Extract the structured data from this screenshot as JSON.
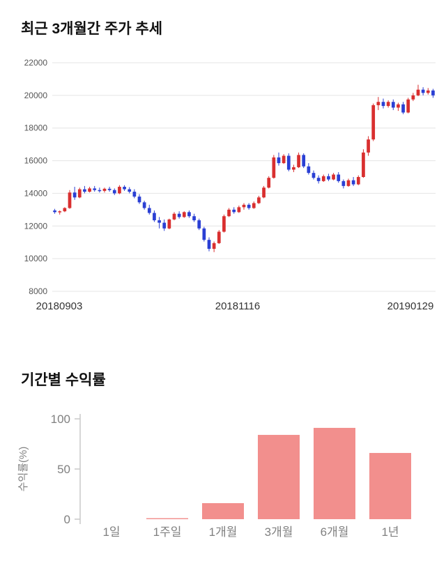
{
  "price_section": {
    "title": "최근 3개월간 주가 추세"
  },
  "returns_section": {
    "title": "기간별 수익률"
  },
  "chart_data": [
    {
      "type": "candlestick",
      "title": "최근 3개월간 주가 추세",
      "ylim": [
        8000,
        22000
      ],
      "yticks": [
        8000,
        10000,
        12000,
        14000,
        16000,
        18000,
        20000,
        22000
      ],
      "x_axis_labels": [
        "20180903",
        "20181116",
        "20190129"
      ],
      "up_color": "#d92f2f",
      "down_color": "#2a3fd4",
      "grid_color": "#e4e4e4",
      "ytick_label_color": "#555555",
      "xlabel_color": "#333333",
      "candles_ohlc": [
        [
          12950,
          13050,
          12750,
          12850
        ],
        [
          12850,
          12950,
          12700,
          12900
        ],
        [
          12900,
          13150,
          12850,
          13100
        ],
        [
          13100,
          14200,
          13050,
          14050
        ],
        [
          14050,
          14400,
          13600,
          13750
        ],
        [
          13750,
          14350,
          13700,
          14250
        ],
        [
          14250,
          14450,
          14000,
          14100
        ],
        [
          14100,
          14400,
          14050,
          14300
        ],
        [
          14300,
          14450,
          14100,
          14200
        ],
        [
          14200,
          14350,
          14050,
          14150
        ],
        [
          14150,
          14350,
          14050,
          14280
        ],
        [
          14280,
          14400,
          14100,
          14200
        ],
        [
          14200,
          14300,
          13900,
          14000
        ],
        [
          14000,
          14500,
          13950,
          14400
        ],
        [
          14400,
          14500,
          14150,
          14250
        ],
        [
          14250,
          14380,
          14000,
          14100
        ],
        [
          14100,
          14250,
          13700,
          13800
        ],
        [
          13800,
          13950,
          13350,
          13450
        ],
        [
          13450,
          13550,
          13000,
          13100
        ],
        [
          13100,
          13300,
          12700,
          12800
        ],
        [
          12800,
          12950,
          12250,
          12350
        ],
        [
          12350,
          12550,
          11850,
          12200
        ],
        [
          12200,
          12400,
          11700,
          11850
        ],
        [
          11850,
          12450,
          11800,
          12400
        ],
        [
          12400,
          12850,
          12350,
          12750
        ],
        [
          12750,
          12900,
          12450,
          12550
        ],
        [
          12550,
          12900,
          12500,
          12850
        ],
        [
          12850,
          12950,
          12500,
          12600
        ],
        [
          12600,
          12750,
          12250,
          12350
        ],
        [
          12350,
          12450,
          11750,
          11850
        ],
        [
          11850,
          11950,
          11050,
          11150
        ],
        [
          11150,
          11300,
          10450,
          10600
        ],
        [
          10600,
          11050,
          10400,
          10950
        ],
        [
          10950,
          11750,
          10900,
          11650
        ],
        [
          11650,
          12700,
          11600,
          12600
        ],
        [
          12600,
          13100,
          12550,
          13000
        ],
        [
          13000,
          13150,
          12750,
          12850
        ],
        [
          12850,
          13250,
          12800,
          13150
        ],
        [
          13150,
          13400,
          13000,
          13300
        ],
        [
          13300,
          13400,
          13000,
          13100
        ],
        [
          13100,
          13500,
          13050,
          13400
        ],
        [
          13400,
          13850,
          13350,
          13750
        ],
        [
          13750,
          14450,
          13700,
          14350
        ],
        [
          14350,
          15050,
          14300,
          14950
        ],
        [
          14950,
          16350,
          14900,
          16200
        ],
        [
          16200,
          16500,
          15700,
          15850
        ],
        [
          15850,
          16400,
          15800,
          16300
        ],
        [
          16300,
          16450,
          15350,
          15450
        ],
        [
          15450,
          15750,
          15300,
          15600
        ],
        [
          15600,
          16500,
          15550,
          16350
        ],
        [
          16350,
          16450,
          15550,
          15650
        ],
        [
          15650,
          15850,
          15150,
          15250
        ],
        [
          15250,
          15400,
          14850,
          14950
        ],
        [
          14950,
          15100,
          14600,
          14750
        ],
        [
          14750,
          15150,
          14700,
          15050
        ],
        [
          15050,
          15200,
          14750,
          14850
        ],
        [
          14850,
          15250,
          14800,
          15150
        ],
        [
          15150,
          15300,
          14650,
          14750
        ],
        [
          14750,
          14850,
          14300,
          14450
        ],
        [
          14450,
          14900,
          14400,
          14800
        ],
        [
          14800,
          15000,
          14450,
          14550
        ],
        [
          14550,
          15100,
          14500,
          15000
        ],
        [
          15000,
          16700,
          14950,
          16500
        ],
        [
          16500,
          17500,
          16300,
          17300
        ],
        [
          17300,
          19500,
          17200,
          19400
        ],
        [
          19400,
          19900,
          19100,
          19600
        ],
        [
          19600,
          19800,
          19200,
          19350
        ],
        [
          19350,
          19700,
          19250,
          19600
        ],
        [
          19600,
          19750,
          19100,
          19250
        ],
        [
          19250,
          19550,
          19050,
          19450
        ],
        [
          19450,
          19600,
          18850,
          18950
        ],
        [
          18950,
          19850,
          18900,
          19750
        ],
        [
          19750,
          20150,
          19650,
          20000
        ],
        [
          20000,
          20650,
          19950,
          20350
        ],
        [
          20350,
          20500,
          20000,
          20150
        ],
        [
          20150,
          20450,
          20050,
          20300
        ],
        [
          20300,
          20400,
          19850,
          20000
        ]
      ]
    },
    {
      "type": "bar",
      "title": "기간별 수익률",
      "categories": [
        "1일",
        "1주일",
        "1개월",
        "3개월",
        "6개월",
        "1년"
      ],
      "values": [
        0,
        1,
        16,
        84,
        91,
        66
      ],
      "ylabel": "수익률(%)",
      "yticks": [
        0,
        50,
        100
      ],
      "ylim": [
        0,
        100
      ],
      "bar_color": "#f28f8d",
      "axis_color": "#c8c8c8",
      "tick_label_color": "#808080"
    }
  ]
}
